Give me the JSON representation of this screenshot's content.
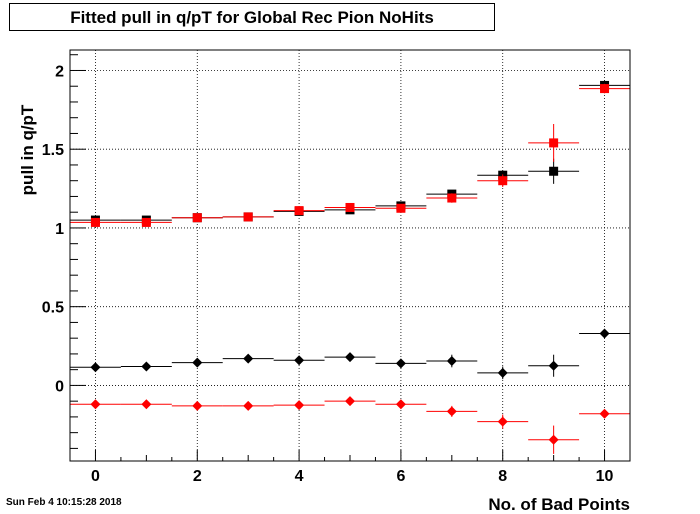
{
  "timestamp": "Sun Feb  4 10:15:28 2018",
  "chart_data": {
    "type": "scatter",
    "title": "Fitted pull in q/pT for Global Rec Pion NoHits",
    "xlabel": "No. of Bad Points",
    "ylabel": "pull in q/pT",
    "xlim": [
      -0.5,
      10.5
    ],
    "ylim": [
      -0.48,
      2.13
    ],
    "xticks": [
      0,
      2,
      4,
      6,
      8,
      10
    ],
    "yticks": [
      0,
      0.5,
      1,
      1.5,
      2
    ],
    "ytick_labels": [
      "0",
      "0.5",
      "1",
      "1.5",
      "2"
    ],
    "grid": true,
    "series": [
      {
        "marker": "square",
        "color": "#000000",
        "x": [
          0,
          1,
          2,
          3,
          4,
          5,
          6,
          7,
          8,
          9,
          10
        ],
        "y": [
          1.05,
          1.05,
          1.065,
          1.07,
          1.105,
          1.115,
          1.14,
          1.215,
          1.335,
          1.36,
          1.905
        ],
        "yerr": [
          0.01,
          0.01,
          0.01,
          0.01,
          0.01,
          0.015,
          0.02,
          0.025,
          0.03,
          0.08,
          0.03
        ]
      },
      {
        "marker": "square",
        "color": "#ff0000",
        "x": [
          0,
          1,
          2,
          3,
          4,
          5,
          6,
          7,
          8,
          9,
          10
        ],
        "y": [
          1.035,
          1.035,
          1.065,
          1.07,
          1.11,
          1.13,
          1.125,
          1.19,
          1.3,
          1.54,
          1.885
        ],
        "yerr": [
          0.01,
          0.01,
          0.01,
          0.01,
          0.01,
          0.015,
          0.02,
          0.03,
          0.04,
          0.12,
          0.03
        ]
      },
      {
        "marker": "diamond",
        "color": "#000000",
        "x": [
          0,
          1,
          2,
          3,
          4,
          5,
          6,
          7,
          8,
          9,
          10
        ],
        "y": [
          0.115,
          0.12,
          0.145,
          0.17,
          0.16,
          0.18,
          0.14,
          0.155,
          0.08,
          0.125,
          0.33
        ],
        "yerr": [
          0.01,
          0.01,
          0.01,
          0.01,
          0.015,
          0.015,
          0.02,
          0.04,
          0.04,
          0.07,
          0.02
        ]
      },
      {
        "marker": "diamond",
        "color": "#ff0000",
        "x": [
          0,
          1,
          2,
          3,
          4,
          5,
          6,
          7,
          8,
          9,
          10
        ],
        "y": [
          -0.12,
          -0.12,
          -0.13,
          -0.13,
          -0.125,
          -0.1,
          -0.12,
          -0.165,
          -0.23,
          -0.345,
          -0.18
        ],
        "yerr": [
          0.01,
          0.01,
          0.01,
          0.01,
          0.01,
          0.015,
          0.02,
          0.035,
          0.045,
          0.09,
          0.02
        ]
      }
    ]
  }
}
